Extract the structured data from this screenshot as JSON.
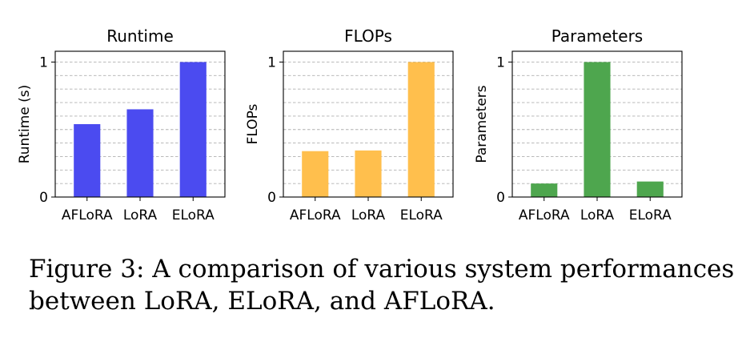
{
  "chart_data": [
    {
      "type": "bar",
      "title": "Runtime",
      "xlabel": "",
      "ylabel": "Runtime (s)",
      "categories": [
        "AFLoRA",
        "LoRA",
        "ELoRA"
      ],
      "values": [
        0.54,
        0.65,
        1.0
      ],
      "ylim": [
        0,
        1.08
      ],
      "yticks": [
        0,
        1
      ],
      "ytick_labels": [
        "0",
        "1"
      ],
      "grid": true,
      "color": "#4b4bf0"
    },
    {
      "type": "bar",
      "title": "FLOPs",
      "xlabel": "",
      "ylabel": "FLOPs",
      "categories": [
        "AFLoRA",
        "LoRA",
        "ELoRA"
      ],
      "values": [
        0.34,
        0.345,
        1.0
      ],
      "ylim": [
        0,
        1.08
      ],
      "yticks": [
        0,
        1
      ],
      "ytick_labels": [
        "0",
        "1"
      ],
      "grid": true,
      "color": "#ffbf4d"
    },
    {
      "type": "bar",
      "title": "Parameters",
      "xlabel": "",
      "ylabel": "Parameters",
      "categories": [
        "AFLoRA",
        "LoRA",
        "ELoRA"
      ],
      "values": [
        0.1,
        1.0,
        0.115
      ],
      "ylim": [
        0,
        1.08
      ],
      "yticks": [
        0,
        1
      ],
      "ytick_labels": [
        "0",
        "1"
      ],
      "grid": true,
      "color": "#4ea64e"
    }
  ],
  "caption": {
    "line1": "Figure 3:  A comparison of various system performances",
    "line2": "between LoRA, ELoRA, and AFLoRA."
  }
}
